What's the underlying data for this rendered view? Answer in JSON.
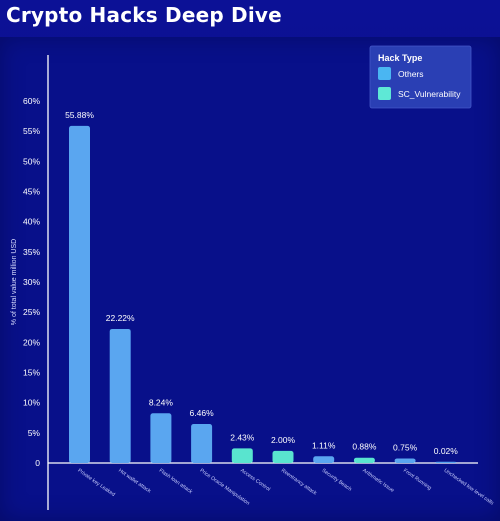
{
  "title": "Crypto Hacks Deep Dive",
  "legend": {
    "title": "Hack Type",
    "items": [
      {
        "label": "Others",
        "color": "#4ab6f2"
      },
      {
        "label": "SC_Vulnerability",
        "color": "#5ee8d6"
      }
    ]
  },
  "chart_data": {
    "type": "bar",
    "title": "Crypto Hacks Deep Dive",
    "ylabel": "% of total value million USD",
    "xlabel": "",
    "ylim": [
      0,
      60
    ],
    "yticks": [
      "0",
      "5%",
      "10%",
      "15%",
      "20%",
      "25%",
      "30%",
      "35%",
      "40%",
      "45%",
      "50%",
      "55%",
      "60%"
    ],
    "categories": [
      "Private key Leaked",
      "Hot wallet attack",
      "Flash loan attack",
      "Price Oracle Manipulation",
      "Access Control",
      "Reentrancy attack",
      "Security Beach",
      "Arithmetic Issue",
      "Front Running",
      "Unchecked low level calls"
    ],
    "values": [
      55.88,
      22.22,
      8.24,
      6.46,
      2.43,
      2.0,
      1.11,
      0.88,
      0.75,
      0.02
    ],
    "value_labels": [
      "55.88%",
      "22.22%",
      "8.24%",
      "6.46%",
      "2.43%",
      "2.00%",
      "1.11%",
      "0.88%",
      "0.75%",
      "0.02%"
    ],
    "hack_types": [
      "Others",
      "Others",
      "Others",
      "Others",
      "SC_Vulnerability",
      "SC_Vulnerability",
      "Others",
      "SC_Vulnerability",
      "Others",
      "Others"
    ],
    "bar_colors": [
      "#5aa6f0",
      "#5aa6f0",
      "#5aa6f0",
      "#5aa6f0",
      "#59e4cf",
      "#59e4cf",
      "#5aa6f0",
      "#59e4cf",
      "#5aa6f0",
      "#5aa6f0"
    ],
    "grid": false,
    "legend_position": "top-right"
  }
}
